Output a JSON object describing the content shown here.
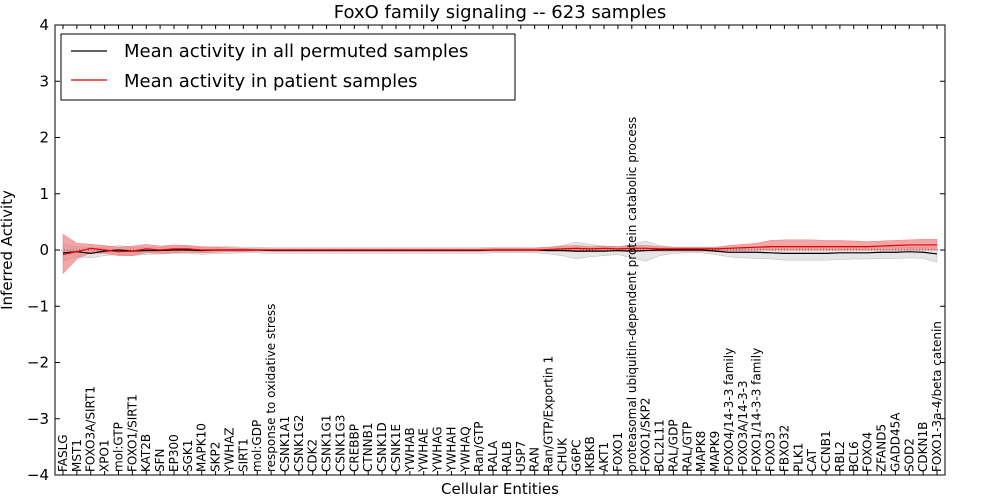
{
  "chart_data": {
    "type": "line",
    "title": "FoxO family signaling -- 623 samples",
    "xlabel": "Cellular Entities",
    "ylabel": "Inferred Activity",
    "ylim": [
      -4,
      4
    ],
    "yticks": [
      -4,
      -3,
      -2,
      -1,
      0,
      1,
      2,
      3,
      4
    ],
    "ytick_labels": [
      "−4",
      "−3",
      "−2",
      "−1",
      "0",
      "1",
      "2",
      "3",
      "4"
    ],
    "legend_position": "top-left",
    "colors": {
      "permuted_line": "#000000",
      "permuted_band": "#cfcfcf",
      "patient_line": "#e00000",
      "patient_band": "#f08080"
    },
    "categories": [
      "FASLG",
      "MST1",
      "FOXO3A/SIRT1",
      "XPO1",
      "mol:GTP",
      "FOXO1/SIRT1",
      "KAT2B",
      "SFN",
      "EP300",
      "SGK1",
      "MAPK10",
      "SKP2",
      "YWHAZ",
      "SIRT1",
      "mol:GDP",
      "response to oxidative stress",
      "CSNK1A1",
      "CSNK1G2",
      "CDK2",
      "CSNK1G1",
      "CSNK1G3",
      "CREBBP",
      "CTNNB1",
      "CSNK1D",
      "CSNK1E",
      "YWHAB",
      "YWHAE",
      "YWHAG",
      "YWHAH",
      "YWHAQ",
      "Ran/GTP",
      "RALA",
      "RALB",
      "USP7",
      "RAN",
      "Ran/GTP/Exportin 1",
      "CHUK",
      "G6PC",
      "IKBKB",
      "AKT1",
      "FOXO1",
      "proteasomal ubiquitin-dependent protein catabolic process",
      "FOXO1/SKP2",
      "BCL2L11",
      "RAL/GDP",
      "RAL/GTP",
      "MAPK8",
      "MAPK9",
      "FOXO4/14-3-3 family",
      "FOXO3A/14-3-3",
      "FOXO1/14-3-3 family",
      "FOXO3",
      "FBXO32",
      "PLK1",
      "CAT",
      "CCNB1",
      "RBL2",
      "BCL6",
      "FOXO4",
      "ZFAND5",
      "GADD45A",
      "SOD2",
      "CDKN1B",
      "FOXO1-3a-4/beta catenin"
    ],
    "series": [
      {
        "name": "Mean activity in all permuted samples",
        "values": [
          -0.05,
          -0.03,
          -0.06,
          -0.02,
          0.0,
          -0.02,
          -0.01,
          -0.01,
          0.0,
          0.0,
          -0.01,
          0.0,
          0.0,
          0.0,
          0.0,
          -0.01,
          -0.01,
          -0.01,
          -0.01,
          -0.01,
          -0.01,
          -0.01,
          -0.01,
          -0.01,
          -0.01,
          -0.01,
          -0.01,
          -0.01,
          -0.01,
          -0.01,
          -0.01,
          0.0,
          0.0,
          0.0,
          0.0,
          -0.01,
          -0.01,
          -0.02,
          -0.02,
          -0.02,
          -0.01,
          -0.02,
          -0.01,
          0.0,
          0.0,
          0.0,
          0.0,
          -0.02,
          -0.04,
          -0.04,
          -0.04,
          -0.05,
          -0.06,
          -0.06,
          -0.06,
          -0.06,
          -0.05,
          -0.05,
          -0.05,
          -0.04,
          -0.04,
          -0.03,
          -0.04,
          -0.07
        ],
        "lower": [
          -0.2,
          -0.12,
          -0.14,
          -0.1,
          -0.08,
          -0.1,
          -0.08,
          -0.07,
          -0.06,
          -0.06,
          -0.08,
          -0.06,
          -0.06,
          -0.05,
          -0.05,
          -0.06,
          -0.06,
          -0.06,
          -0.06,
          -0.06,
          -0.06,
          -0.06,
          -0.06,
          -0.06,
          -0.06,
          -0.06,
          -0.06,
          -0.06,
          -0.06,
          -0.06,
          -0.06,
          -0.05,
          -0.05,
          -0.05,
          -0.05,
          -0.07,
          -0.1,
          -0.16,
          -0.12,
          -0.1,
          -0.08,
          -0.14,
          -0.2,
          -0.1,
          -0.06,
          -0.05,
          -0.05,
          -0.08,
          -0.12,
          -0.14,
          -0.15,
          -0.16,
          -0.18,
          -0.18,
          -0.18,
          -0.18,
          -0.17,
          -0.16,
          -0.16,
          -0.15,
          -0.15,
          -0.14,
          -0.15,
          -0.22
        ],
        "upper": [
          0.1,
          0.06,
          0.04,
          0.05,
          0.08,
          0.05,
          0.05,
          0.05,
          0.06,
          0.06,
          0.05,
          0.06,
          0.06,
          0.05,
          0.05,
          0.04,
          0.04,
          0.04,
          0.04,
          0.04,
          0.04,
          0.04,
          0.04,
          0.04,
          0.04,
          0.04,
          0.04,
          0.04,
          0.04,
          0.04,
          0.04,
          0.05,
          0.05,
          0.05,
          0.05,
          0.05,
          0.08,
          0.14,
          0.1,
          0.07,
          0.06,
          0.1,
          0.16,
          0.08,
          0.05,
          0.05,
          0.05,
          0.05,
          0.04,
          0.04,
          0.04,
          0.04,
          0.04,
          0.04,
          0.04,
          0.04,
          0.04,
          0.04,
          0.04,
          0.04,
          0.04,
          0.05,
          0.05,
          0.04
        ]
      },
      {
        "name": "Mean activity in patient samples",
        "values": [
          -0.08,
          -0.03,
          0.03,
          0.0,
          -0.03,
          -0.02,
          0.02,
          0.0,
          0.02,
          0.02,
          0.0,
          0.0,
          0.0,
          0.0,
          0.0,
          0.0,
          0.0,
          0.0,
          0.0,
          0.0,
          0.0,
          0.0,
          0.0,
          0.0,
          0.0,
          0.0,
          0.0,
          0.0,
          0.0,
          0.0,
          0.0,
          0.0,
          0.0,
          0.0,
          0.0,
          0.01,
          0.02,
          0.03,
          0.02,
          0.03,
          0.02,
          0.03,
          0.03,
          0.02,
          0.02,
          0.02,
          0.02,
          0.02,
          0.03,
          0.04,
          0.05,
          0.06,
          0.06,
          0.06,
          0.06,
          0.06,
          0.06,
          0.06,
          0.06,
          0.07,
          0.08,
          0.09,
          0.09,
          0.09
        ],
        "lower": [
          -0.42,
          -0.16,
          -0.05,
          -0.06,
          -0.1,
          -0.1,
          -0.05,
          -0.06,
          -0.05,
          -0.04,
          -0.05,
          -0.04,
          -0.03,
          -0.03,
          -0.02,
          -0.02,
          -0.02,
          -0.02,
          -0.02,
          -0.02,
          -0.02,
          -0.02,
          -0.02,
          -0.02,
          -0.02,
          -0.02,
          -0.02,
          -0.02,
          -0.02,
          -0.02,
          -0.02,
          -0.02,
          -0.02,
          -0.02,
          -0.02,
          -0.02,
          -0.02,
          -0.03,
          -0.03,
          -0.02,
          -0.02,
          -0.03,
          -0.02,
          -0.02,
          -0.02,
          -0.02,
          -0.02,
          -0.02,
          -0.01,
          -0.01,
          0.0,
          0.0,
          0.0,
          0.0,
          0.0,
          0.0,
          0.0,
          0.0,
          0.0,
          0.0,
          0.0,
          0.0,
          0.0,
          0.0
        ],
        "upper": [
          0.28,
          0.12,
          0.1,
          0.08,
          0.05,
          0.07,
          0.1,
          0.07,
          0.09,
          0.08,
          0.06,
          0.05,
          0.04,
          0.03,
          0.02,
          0.02,
          0.02,
          0.02,
          0.02,
          0.02,
          0.02,
          0.02,
          0.02,
          0.02,
          0.02,
          0.02,
          0.02,
          0.02,
          0.02,
          0.02,
          0.02,
          0.03,
          0.03,
          0.03,
          0.03,
          0.05,
          0.07,
          0.08,
          0.06,
          0.07,
          0.06,
          0.08,
          0.08,
          0.06,
          0.05,
          0.05,
          0.05,
          0.05,
          0.08,
          0.1,
          0.12,
          0.17,
          0.18,
          0.18,
          0.18,
          0.17,
          0.17,
          0.16,
          0.15,
          0.16,
          0.17,
          0.18,
          0.19,
          0.19
        ]
      }
    ]
  }
}
